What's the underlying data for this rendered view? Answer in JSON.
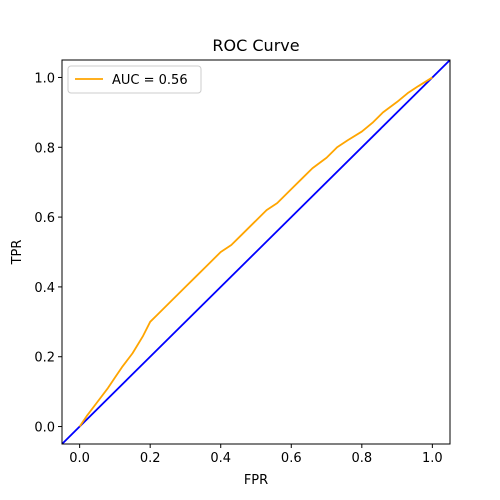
{
  "chart_data": {
    "type": "line",
    "title": "ROC Curve",
    "xlabel": "FPR",
    "ylabel": "TPR",
    "xlim": [
      -0.05,
      1.05
    ],
    "ylim": [
      -0.05,
      1.05
    ],
    "xticks": [
      0.0,
      0.2,
      0.4,
      0.6,
      0.8,
      1.0
    ],
    "yticks": [
      0.0,
      0.2,
      0.4,
      0.6,
      0.8,
      1.0
    ],
    "xtick_labels": [
      "0.0",
      "0.2",
      "0.4",
      "0.6",
      "0.8",
      "1.0"
    ],
    "ytick_labels": [
      "0.0",
      "0.2",
      "0.4",
      "0.6",
      "0.8",
      "1.0"
    ],
    "grid": false,
    "legend_position": "top-left",
    "series": [
      {
        "name": "AUC = 0.56",
        "color": "#ffa500",
        "x": [
          0.0,
          0.02,
          0.05,
          0.08,
          0.1,
          0.12,
          0.15,
          0.18,
          0.2,
          0.22,
          0.25,
          0.28,
          0.3,
          0.33,
          0.36,
          0.4,
          0.43,
          0.46,
          0.5,
          0.53,
          0.56,
          0.6,
          0.63,
          0.66,
          0.7,
          0.73,
          0.76,
          0.8,
          0.83,
          0.86,
          0.9,
          0.93,
          0.96,
          1.0
        ],
        "y": [
          0.0,
          0.03,
          0.07,
          0.11,
          0.14,
          0.17,
          0.21,
          0.26,
          0.3,
          0.32,
          0.35,
          0.38,
          0.4,
          0.43,
          0.46,
          0.5,
          0.52,
          0.55,
          0.59,
          0.62,
          0.64,
          0.68,
          0.71,
          0.74,
          0.77,
          0.8,
          0.82,
          0.845,
          0.87,
          0.9,
          0.93,
          0.955,
          0.975,
          1.0
        ]
      },
      {
        "name": "",
        "color": "#0000ff",
        "x": [
          -0.05,
          1.05
        ],
        "y": [
          -0.05,
          1.05
        ]
      }
    ]
  }
}
